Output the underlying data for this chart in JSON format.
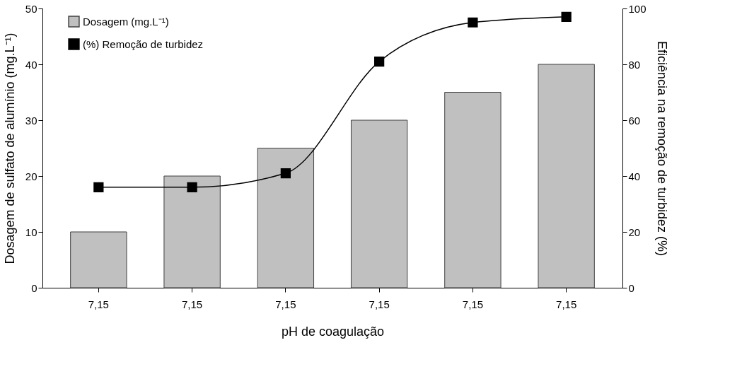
{
  "chart_data": {
    "type": "bar",
    "xlabel": "pH de coagulação",
    "ylabel": "Dosagem de sulfato de alumínio (mg.L⁻¹)",
    "y2label": "Eficiência na remoção de turbidez (%)",
    "categories": [
      "7,15",
      "7,15",
      "7,15",
      "7,15",
      "7,15",
      "7,15"
    ],
    "series": [
      {
        "name": "Dosagem (mg.L⁻¹)",
        "color": "#c0c0c0",
        "values": [
          10,
          20,
          25,
          30,
          35,
          40
        ]
      },
      {
        "name": "(%) Remoção de turbidez",
        "type": "line",
        "axis": "y2",
        "color": "#000000",
        "marker": "square",
        "line_style": "solid",
        "values": [
          36,
          36,
          41,
          81,
          95,
          97
        ]
      }
    ],
    "ylim": [
      0,
      50
    ],
    "yticks": [
      0,
      10,
      20,
      30,
      40,
      50
    ],
    "y2lim": [
      0,
      100
    ],
    "y2ticks": [
      0,
      20,
      40,
      60,
      80,
      100
    ],
    "legend": "top left",
    "grid": false
  }
}
